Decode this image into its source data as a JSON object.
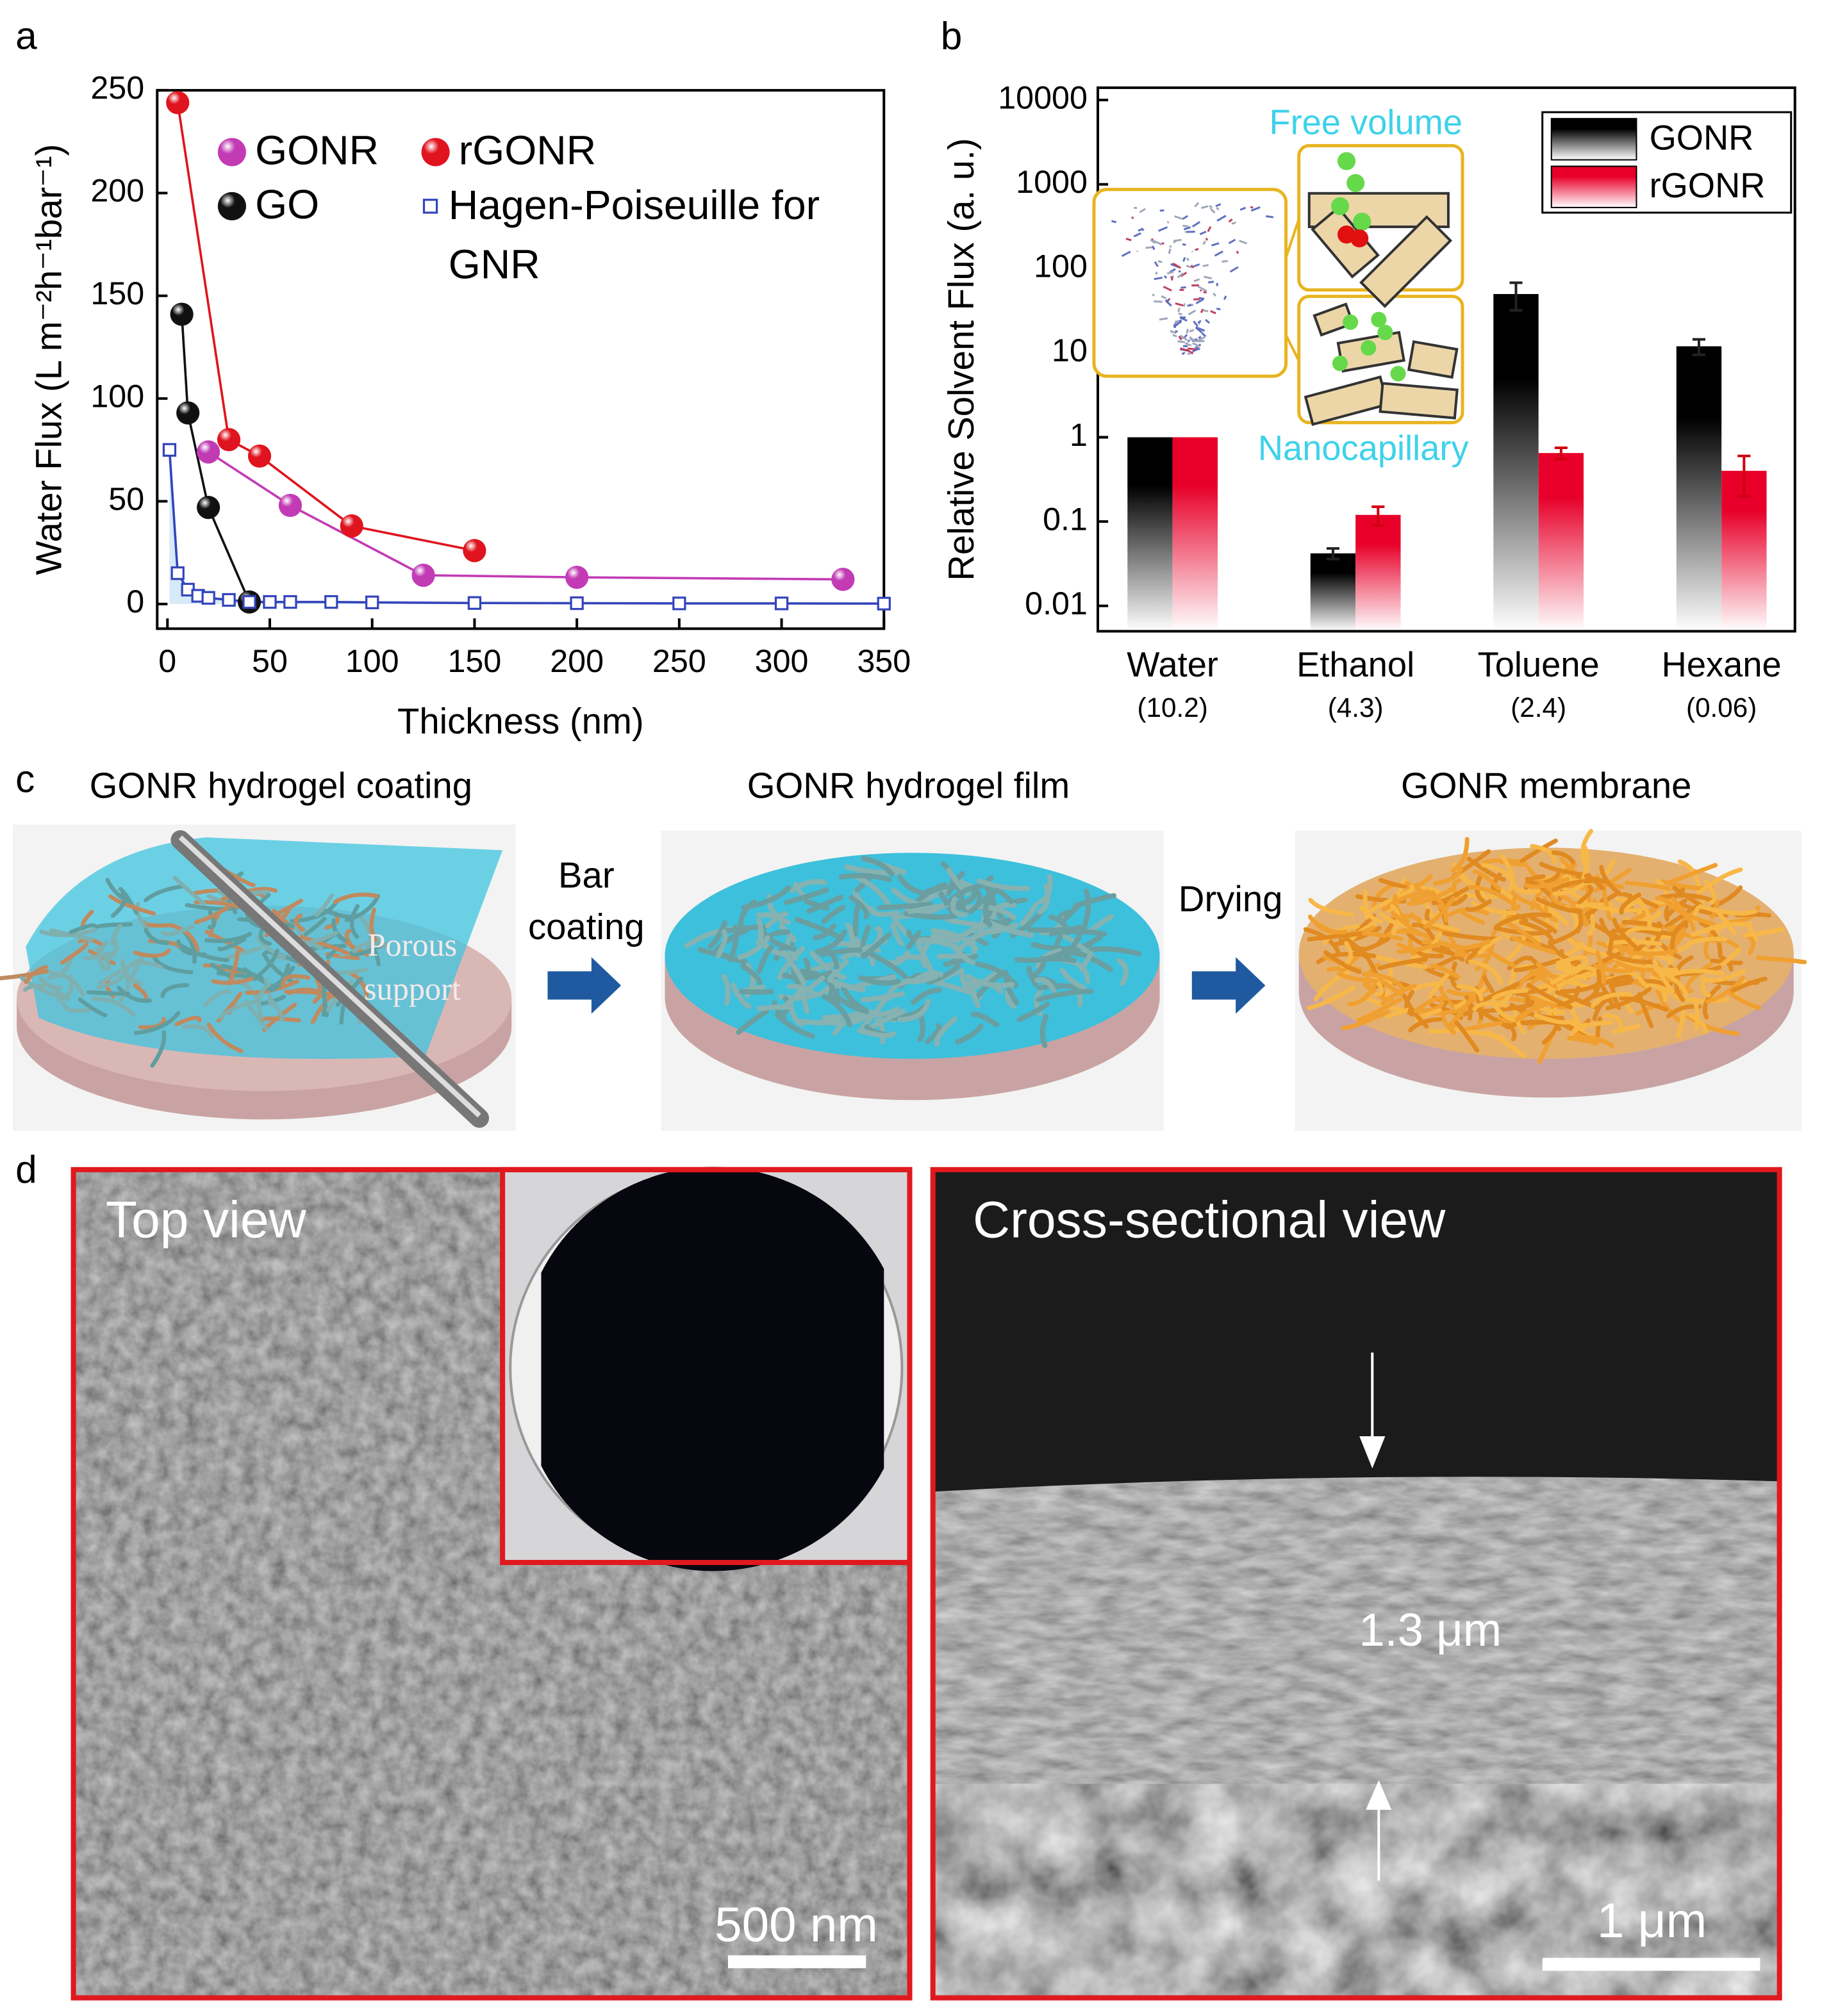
{
  "panel_labels": [
    "a",
    "b",
    "c",
    "d"
  ],
  "chart_data": [
    {
      "type": "line",
      "x_label": "Thickness (nm)",
      "y_label": "Water Flux (L m⁻²h⁻¹bar⁻¹)",
      "xlim": [
        -5,
        350
      ],
      "ylim": [
        -12,
        250
      ],
      "xticks": [
        0,
        50,
        100,
        150,
        200,
        250,
        300,
        350
      ],
      "yticks": [
        0,
        50,
        100,
        150,
        200,
        250
      ],
      "series": [
        {
          "name": "GONR",
          "color": "#c23bb5",
          "marker": "sphere",
          "x": [
            20,
            60,
            125,
            200,
            330
          ],
          "values": [
            74,
            48,
            14,
            13,
            12
          ]
        },
        {
          "name": "rGONR",
          "color": "#e0141e",
          "marker": "sphere",
          "x": [
            5,
            30,
            45,
            90,
            150
          ],
          "values": [
            244,
            80,
            72,
            38,
            26
          ]
        },
        {
          "name": "GO",
          "color": "#111111",
          "marker": "sphere",
          "x": [
            7,
            10,
            20,
            40
          ],
          "values": [
            141,
            93,
            47,
            1
          ]
        },
        {
          "name": "Hagen-Poiseuille for GNR",
          "color": "#3344bb",
          "marker": "square",
          "fill": "#d6eaf8",
          "x": [
            1,
            5,
            10,
            15,
            20,
            30,
            40,
            50,
            60,
            80,
            100,
            150,
            200,
            250,
            300,
            350
          ],
          "values": [
            75,
            15,
            7,
            4,
            3,
            2,
            1,
            1,
            1,
            1,
            0.8,
            0.5,
            0.4,
            0.3,
            0.3,
            0.2
          ]
        }
      ]
    },
    {
      "type": "bar",
      "log_scale": true,
      "y_label": "Relative Solvent Flux (a. u.)",
      "ylim": [
        0.005,
        14000
      ],
      "yticks": [
        0.01,
        0.1,
        1,
        10,
        100,
        1000,
        10000
      ],
      "categories": [
        "Water",
        "Ethanol",
        "Toluene",
        "Hexane"
      ],
      "category_notes": [
        "(10.2)",
        "(4.3)",
        "(2.4)",
        "(0.06)"
      ],
      "legend": "upper right",
      "inset_labels": [
        "Free volume",
        "Nanocapillary"
      ],
      "series": [
        {
          "name": "GONR",
          "color": "#000000",
          "values": [
            1,
            0.042,
            50,
            12
          ],
          "errors": [
            null,
            0.006,
            18,
            2.5
          ]
        },
        {
          "name": "rGONR",
          "color": "#e8002a",
          "values": [
            1,
            0.12,
            0.65,
            0.4
          ],
          "errors": [
            null,
            0.03,
            0.1,
            0.2
          ]
        }
      ]
    }
  ],
  "process": {
    "steps": [
      "GONR hydrogel coating",
      "GONR hydrogel film",
      "GONR membrane"
    ],
    "support_label": "Porous support",
    "transitions": [
      "Bar coating",
      "Drying"
    ]
  },
  "micrographs": {
    "top": {
      "title": "Top view",
      "scale_bar": "500 nm"
    },
    "cross": {
      "title": "Cross-sectional view",
      "thickness": "1.3 μm",
      "scale_bar": "1 μm"
    }
  }
}
